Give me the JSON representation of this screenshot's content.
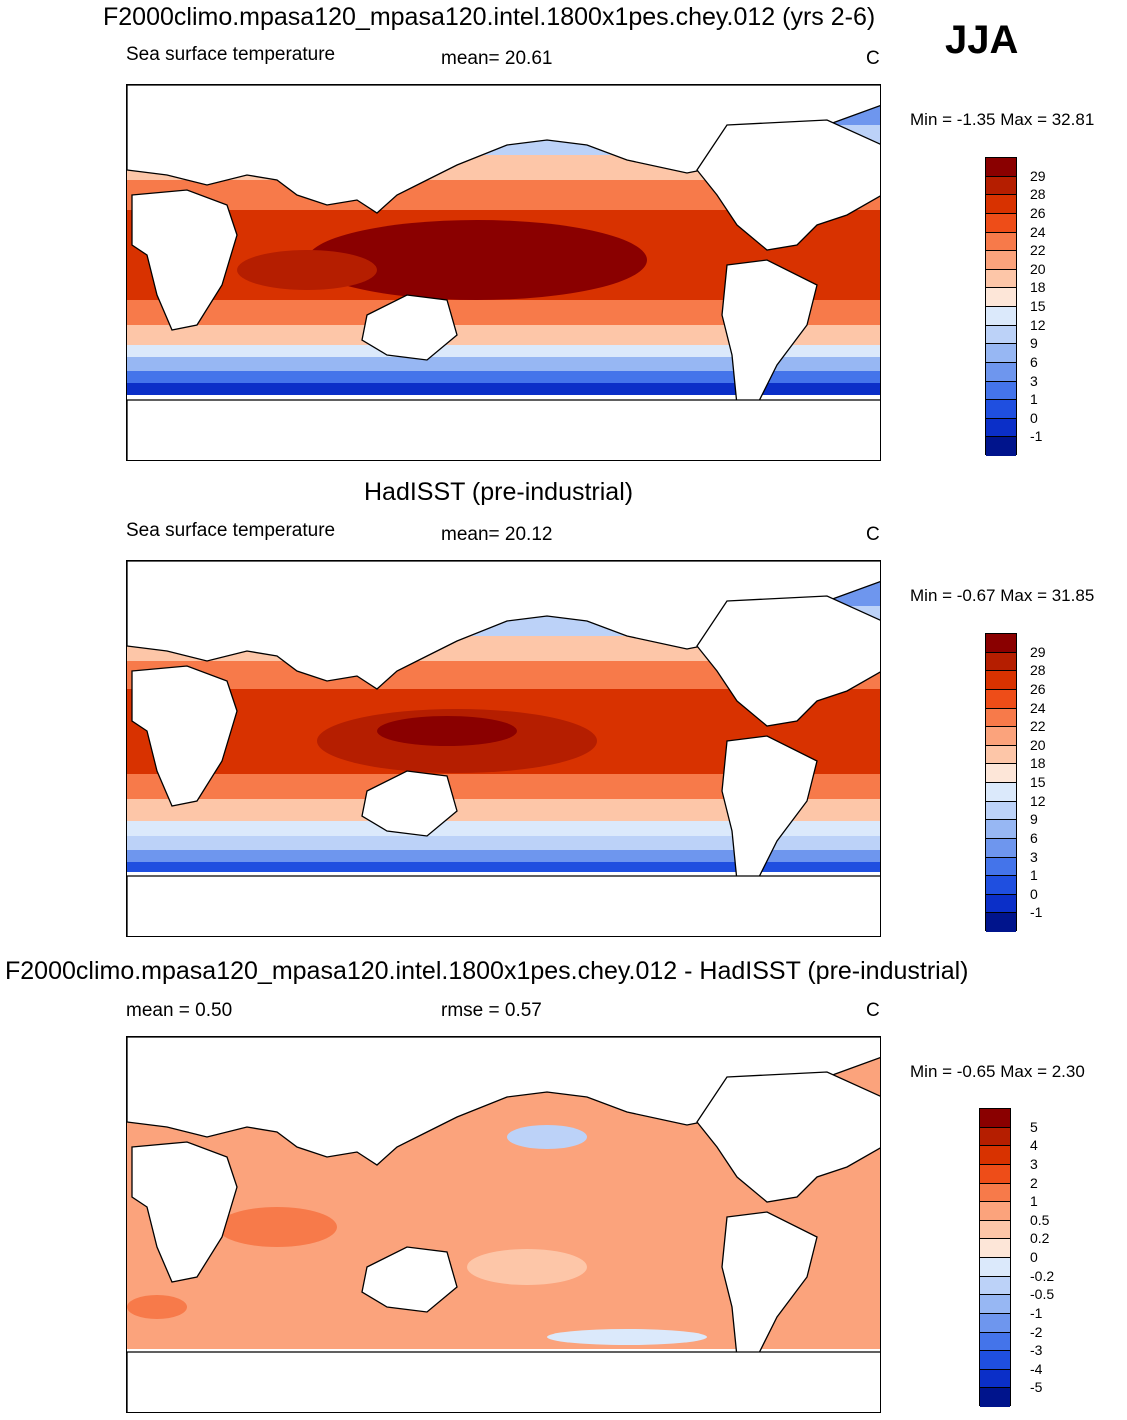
{
  "season": "JJA",
  "panels": [
    {
      "title": "F2000climo.mpasa120_mpasa120.intel.1800x1pes.chey.012 (yrs 2-6)",
      "left_label": "Sea surface temperature",
      "stat1": "mean=  20.61",
      "stat2": "",
      "units": "C",
      "minmax": "Min =  -1.35 Max =  32.81"
    },
    {
      "title": "HadISST (pre-industrial)",
      "left_label": "Sea surface temperature",
      "stat1": "mean=  20.12",
      "stat2": "",
      "units": "C",
      "minmax": "Min =  -0.67 Max =  31.85"
    },
    {
      "title": "F2000climo.mpasa120_mpasa120.intel.1800x1pes.chey.012 - HadISST (pre-industrial)",
      "left_label": "mean =   0.50",
      "stat1": "rmse =    0.57",
      "stat2": "",
      "units": "C",
      "minmax": "Min =  -0.65 Max =   2.30"
    }
  ],
  "colorbars": {
    "sst": {
      "labels": [
        "29",
        "28",
        "26",
        "24",
        "22",
        "20",
        "18",
        "15",
        "12",
        "9",
        "6",
        "3",
        "1",
        "0",
        "-1"
      ],
      "colors": [
        "#8a0000",
        "#b51e00",
        "#d83200",
        "#ee4d18",
        "#f77a4a",
        "#fba37c",
        "#fdc6a8",
        "#fde6d8",
        "#dbe9fb",
        "#bcd2f8",
        "#97b7f3",
        "#6e96ee",
        "#4474ea",
        "#1f4fe0",
        "#0b2fc8",
        "#00148c"
      ]
    },
    "diff": {
      "labels": [
        "5",
        "4",
        "3",
        "2",
        "1",
        "0.5",
        "0.2",
        "0",
        "-0.2",
        "-0.5",
        "-1",
        "-2",
        "-3",
        "-4",
        "-5"
      ],
      "colors": [
        "#8a0000",
        "#b51e00",
        "#d83200",
        "#ee4d18",
        "#f77a4a",
        "#fba37c",
        "#fdc6a8",
        "#fde6d8",
        "#dbe9fb",
        "#bcd2f8",
        "#97b7f3",
        "#6e96ee",
        "#4474ea",
        "#1f4fe0",
        "#0b2fc8",
        "#00148c"
      ]
    }
  }
}
